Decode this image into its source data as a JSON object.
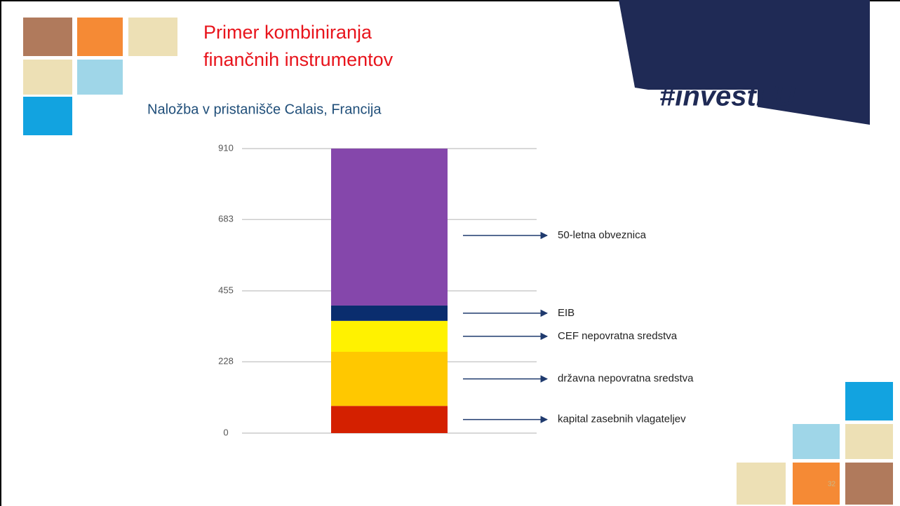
{
  "slide": {
    "title_line1": "Primer kombiniranja",
    "title_line2": "finančnih instrumentov",
    "logo": "#investEU",
    "page_number": "32"
  },
  "chart_data": {
    "type": "stacked_bar",
    "title": "Naložba v pristanišče Calais, Francija",
    "categories": [
      null
    ],
    "series": [
      {
        "name": "kapital zasebnih vlagateljev",
        "color": "#d42000",
        "values": [
          87
        ]
      },
      {
        "name": "državna nepovratna sredstva",
        "color": "#ffc800",
        "values": [
          173
        ]
      },
      {
        "name": "CEF nepovratna sredstva",
        "color": "#fff200",
        "values": [
          99
        ]
      },
      {
        "name": "EIB",
        "color": "#0a2d6e",
        "values": [
          49
        ]
      },
      {
        "name": "50-letna obveznica",
        "color": "#8547ab",
        "values": [
          502
        ]
      }
    ],
    "ylim": [
      0,
      910
    ],
    "yticks": [
      0,
      228,
      455,
      683,
      910
    ],
    "grid": true
  }
}
